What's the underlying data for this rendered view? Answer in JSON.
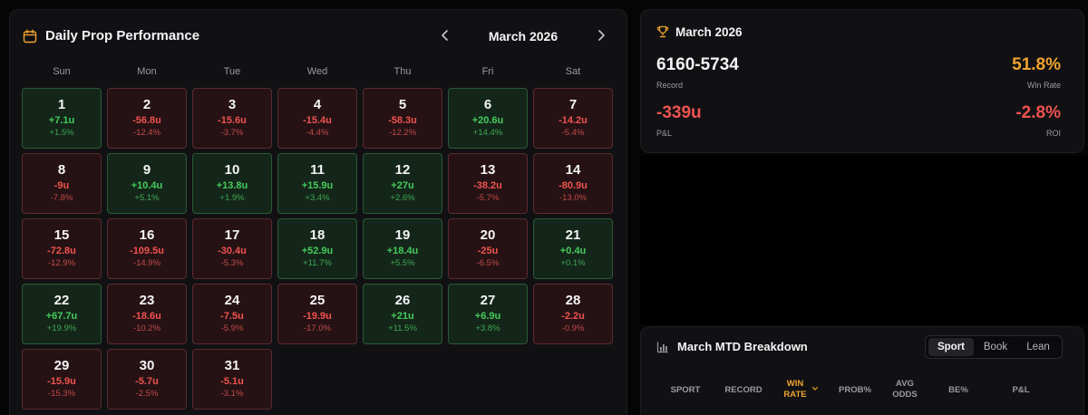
{
  "calendar": {
    "title": "Daily Prop Performance",
    "month": "March 2026",
    "weekdays": [
      "Sun",
      "Mon",
      "Tue",
      "Wed",
      "Thu",
      "Fri",
      "Sat"
    ],
    "start_weekday": 0,
    "days": [
      {
        "day": "1",
        "units": "+7.1u",
        "pct": "+1.5%",
        "result": "win"
      },
      {
        "day": "2",
        "units": "-56.8u",
        "pct": "-12.4%",
        "result": "loss"
      },
      {
        "day": "3",
        "units": "-15.6u",
        "pct": "-3.7%",
        "result": "loss"
      },
      {
        "day": "4",
        "units": "-15.4u",
        "pct": "-4.4%",
        "result": "loss"
      },
      {
        "day": "5",
        "units": "-58.3u",
        "pct": "-12.2%",
        "result": "loss"
      },
      {
        "day": "6",
        "units": "+20.6u",
        "pct": "+14.4%",
        "result": "win"
      },
      {
        "day": "7",
        "units": "-14.2u",
        "pct": "-5.4%",
        "result": "loss"
      },
      {
        "day": "8",
        "units": "-9u",
        "pct": "-7.8%",
        "result": "loss"
      },
      {
        "day": "9",
        "units": "+10.4u",
        "pct": "+5.1%",
        "result": "win"
      },
      {
        "day": "10",
        "units": "+13.8u",
        "pct": "+1.9%",
        "result": "win"
      },
      {
        "day": "11",
        "units": "+15.9u",
        "pct": "+3.4%",
        "result": "win"
      },
      {
        "day": "12",
        "units": "+27u",
        "pct": "+2.6%",
        "result": "win"
      },
      {
        "day": "13",
        "units": "-38.2u",
        "pct": "-5.7%",
        "result": "loss"
      },
      {
        "day": "14",
        "units": "-80.9u",
        "pct": "-13.0%",
        "result": "loss"
      },
      {
        "day": "15",
        "units": "-72.8u",
        "pct": "-12.9%",
        "result": "loss"
      },
      {
        "day": "16",
        "units": "-109.5u",
        "pct": "-14.9%",
        "result": "loss"
      },
      {
        "day": "17",
        "units": "-30.4u",
        "pct": "-5.3%",
        "result": "loss"
      },
      {
        "day": "18",
        "units": "+52.9u",
        "pct": "+11.7%",
        "result": "win"
      },
      {
        "day": "19",
        "units": "+18.4u",
        "pct": "+5.5%",
        "result": "win"
      },
      {
        "day": "20",
        "units": "-25u",
        "pct": "-6.5%",
        "result": "loss"
      },
      {
        "day": "21",
        "units": "+0.4u",
        "pct": "+0.1%",
        "result": "win"
      },
      {
        "day": "22",
        "units": "+67.7u",
        "pct": "+19.9%",
        "result": "win"
      },
      {
        "day": "23",
        "units": "-18.6u",
        "pct": "-10.2%",
        "result": "loss"
      },
      {
        "day": "24",
        "units": "-7.5u",
        "pct": "-5.9%",
        "result": "loss"
      },
      {
        "day": "25",
        "units": "-19.9u",
        "pct": "-17.0%",
        "result": "loss"
      },
      {
        "day": "26",
        "units": "+21u",
        "pct": "+11.5%",
        "result": "win"
      },
      {
        "day": "27",
        "units": "+6.9u",
        "pct": "+3.8%",
        "result": "win"
      },
      {
        "day": "28",
        "units": "-2.2u",
        "pct": "-0.9%",
        "result": "loss"
      },
      {
        "day": "29",
        "units": "-15.9u",
        "pct": "-15.3%",
        "result": "loss"
      },
      {
        "day": "30",
        "units": "-5.7u",
        "pct": "-2.5%",
        "result": "loss"
      },
      {
        "day": "31",
        "units": "-5.1u",
        "pct": "-3.1%",
        "result": "loss"
      }
    ]
  },
  "summary": {
    "title": "March 2026",
    "record": "6160-5734",
    "record_label": "Record",
    "win_rate": "51.8%",
    "win_rate_label": "Win Rate",
    "pnl": "-339u",
    "pnl_label": "P&L",
    "roi": "-2.8%",
    "roi_label": "ROI"
  },
  "breakdown": {
    "title": "March MTD Breakdown",
    "tabs": [
      "Sport",
      "Book",
      "Lean"
    ],
    "active_tab": "Sport",
    "columns": [
      "SPORT",
      "RECORD",
      "WIN RATE",
      "PROB%",
      "AVG ODDS",
      "BE%",
      "P&L"
    ],
    "sorted_column": "WIN RATE"
  },
  "icons": {
    "calendar": "calendar-icon",
    "prev": "chevron-left-icon",
    "next": "chevron-right-icon",
    "trophy": "trophy-icon",
    "chart": "bar-chart-icon",
    "sort": "chevron-down-icon"
  },
  "colors": {
    "win": "#46cc5c",
    "loss": "#ef5350",
    "accent": "#f0a330",
    "panel": "#111113"
  }
}
